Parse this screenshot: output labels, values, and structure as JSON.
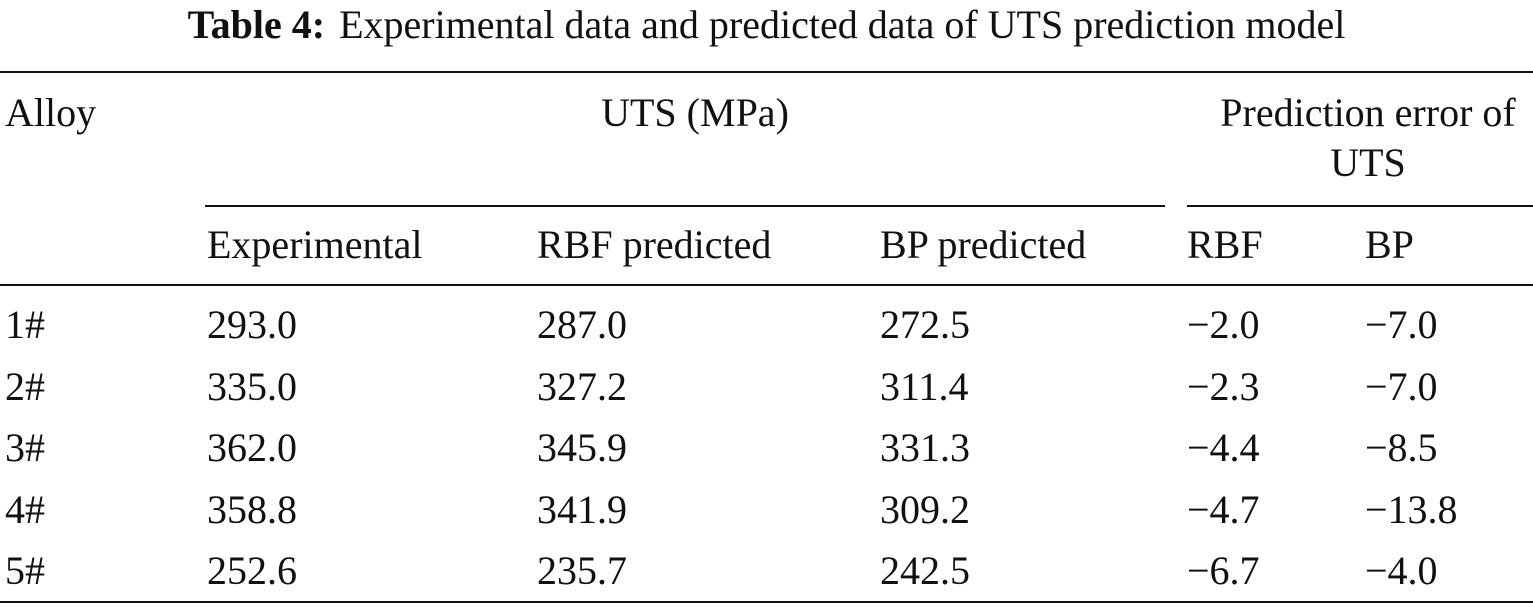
{
  "title": {
    "label": "Table 4:",
    "text": "Experimental data and predicted data of UTS prediction model"
  },
  "table": {
    "header": {
      "alloy": "Alloy",
      "uts": "UTS (MPa)",
      "error": "Prediction error of UTS"
    },
    "subheader": [
      "Experimental",
      "RBF predicted",
      "BP predicted",
      "RBF",
      "BP"
    ],
    "rows": [
      [
        "1#",
        "293.0",
        "287.0",
        "272.5",
        "−2.0",
        "−7.0"
      ],
      [
        "2#",
        "335.0",
        "327.2",
        "311.4",
        "−2.3",
        "−7.0"
      ],
      [
        "3#",
        "362.0",
        "345.9",
        "331.3",
        "−4.4",
        "−8.5"
      ],
      [
        "4#",
        "358.8",
        "341.9",
        "309.2",
        "−4.7",
        "−13.8"
      ],
      [
        "5#",
        "252.6",
        "235.7",
        "242.5",
        "−6.7",
        "−4.0"
      ]
    ]
  }
}
